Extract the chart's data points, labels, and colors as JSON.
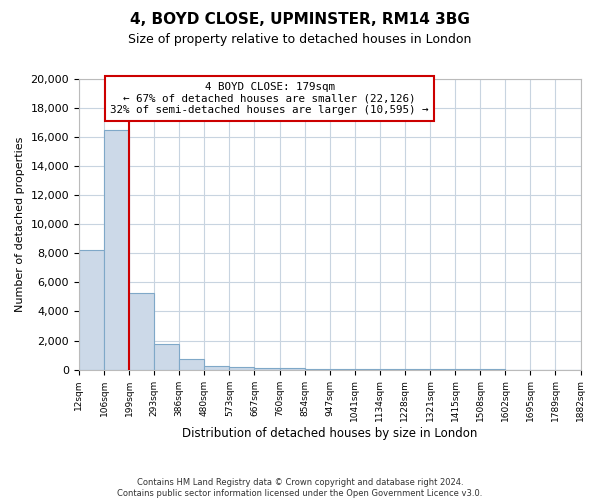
{
  "title": "4, BOYD CLOSE, UPMINSTER, RM14 3BG",
  "subtitle": "Size of property relative to detached houses in London",
  "xlabel": "Distribution of detached houses by size in London",
  "ylabel": "Number of detached properties",
  "bar_values": [
    8200,
    16500,
    5300,
    1750,
    750,
    250,
    150,
    100,
    80,
    60,
    50,
    40,
    30,
    20,
    15,
    10,
    8,
    5,
    3,
    2
  ],
  "bar_labels": [
    "12sqm",
    "106sqm",
    "199sqm",
    "293sqm",
    "386sqm",
    "480sqm",
    "573sqm",
    "667sqm",
    "760sqm",
    "854sqm",
    "947sqm",
    "1041sqm",
    "1134sqm",
    "1228sqm",
    "1321sqm",
    "1415sqm",
    "1508sqm",
    "1602sqm",
    "1695sqm",
    "1789sqm",
    "1882sqm"
  ],
  "bar_color": "#ccd9e8",
  "bar_edge_color": "#7fa8c8",
  "vline_color": "#cc0000",
  "vline_x": 2,
  "annotation_text_line1": "4 BOYD CLOSE: 179sqm",
  "annotation_text_line2": "← 67% of detached houses are smaller (22,126)",
  "annotation_text_line3": "32% of semi-detached houses are larger (10,595) →",
  "annotation_box_color": "#ffffff",
  "annotation_box_edge_color": "#cc0000",
  "ylim": [
    0,
    20000
  ],
  "yticks": [
    0,
    2000,
    4000,
    6000,
    8000,
    10000,
    12000,
    14000,
    16000,
    18000,
    20000
  ],
  "footer_line1": "Contains HM Land Registry data © Crown copyright and database right 2024.",
  "footer_line2": "Contains public sector information licensed under the Open Government Licence v3.0.",
  "bg_color": "#ffffff",
  "grid_color": "#c8d4e0"
}
